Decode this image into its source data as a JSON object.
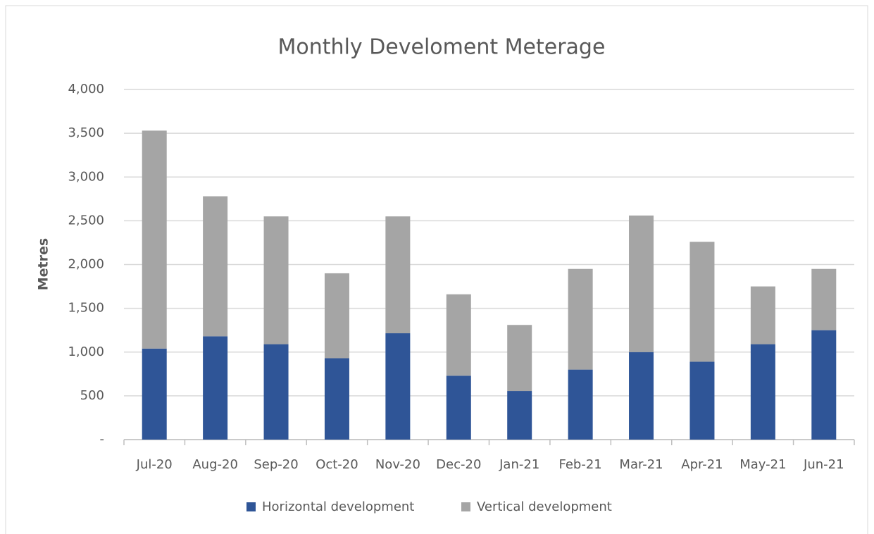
{
  "chart_data": {
    "type": "bar",
    "stacked": true,
    "title": "Monthly Develoment Meterage",
    "y_label": "Metres",
    "categories": [
      "Jul-20",
      "Aug-20",
      "Sep-20",
      "Oct-20",
      "Nov-20",
      "Dec-20",
      "Jan-21",
      "Feb-21",
      "Mar-21",
      "Apr-21",
      "May-21",
      "Jun-21"
    ],
    "series": [
      {
        "name": "Horizontal development",
        "color": "#2f5597",
        "values": [
          1040,
          1180,
          1090,
          930,
          1215,
          730,
          555,
          800,
          1000,
          890,
          1090,
          1250
        ]
      },
      {
        "name": "Vertical development",
        "color": "#a5a5a5",
        "values": [
          2490,
          1600,
          1460,
          970,
          1335,
          930,
          755,
          1150,
          1560,
          1370,
          660,
          700
        ]
      }
    ],
    "ylim": [
      0,
      4000
    ],
    "yticks": [
      {
        "value": 0,
        "label": "-"
      },
      {
        "value": 500,
        "label": "500"
      },
      {
        "value": 1000,
        "label": "1,000"
      },
      {
        "value": 1500,
        "label": "1,500"
      },
      {
        "value": 2000,
        "label": "2,000"
      },
      {
        "value": 2500,
        "label": "2,500"
      },
      {
        "value": 3000,
        "label": "3,000"
      },
      {
        "value": 3500,
        "label": "3,500"
      },
      {
        "value": 4000,
        "label": "4,000"
      }
    ],
    "grid": true,
    "legend": "bottom"
  }
}
